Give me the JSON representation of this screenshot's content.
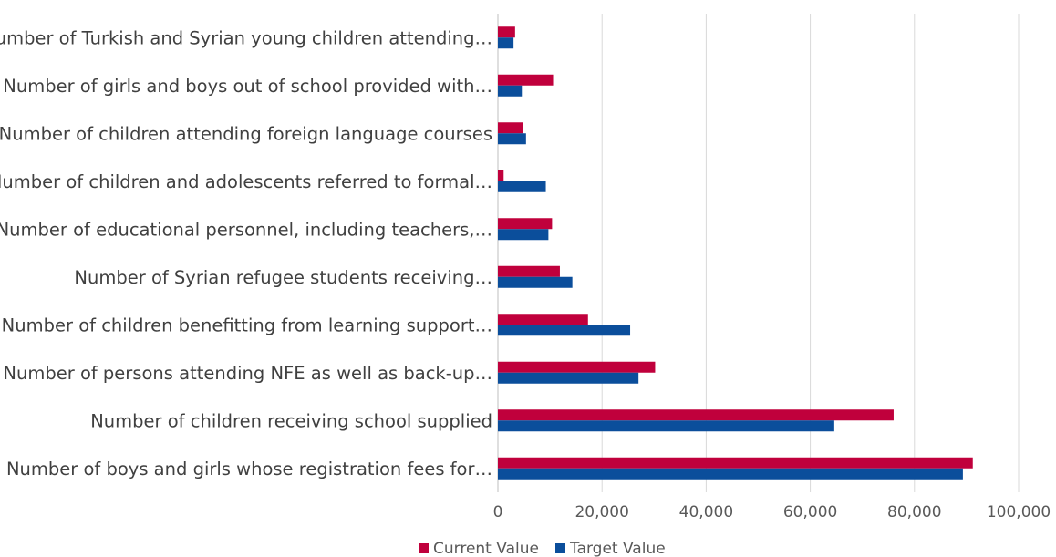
{
  "chart_data": {
    "type": "bar",
    "orientation": "horizontal",
    "categories": [
      "Number of Turkish and Syrian young children attending…",
      "Number of girls and boys out of school provided with…",
      "Number of children attending foreign language courses",
      "Number of children and adolescents referred to formal…",
      "Number of educational personnel, including teachers,…",
      "Number of Syrian refugee students receiving…",
      "Number of children benefitting from learning support…",
      "Number of persons attending NFE as well as back-up…",
      "Number of children receiving school supplied",
      "Number of boys and girls whose registration fees for…"
    ],
    "series": [
      {
        "name": "Current Value",
        "color": "#c0003c",
        "values": [
          3300,
          10600,
          4800,
          1100,
          10400,
          11900,
          17300,
          30200,
          76000,
          91200
        ]
      },
      {
        "name": "Target Value",
        "color": "#0b4e9b",
        "values": [
          3000,
          4600,
          5400,
          9200,
          9700,
          14300,
          25400,
          27000,
          64600,
          89300
        ]
      }
    ],
    "xticks": [
      "0",
      "20,000",
      "40,000",
      "60,000",
      "80,000",
      "100,000"
    ],
    "xlim": [
      0,
      100000
    ],
    "grid": true,
    "legend_position": "bottom"
  }
}
